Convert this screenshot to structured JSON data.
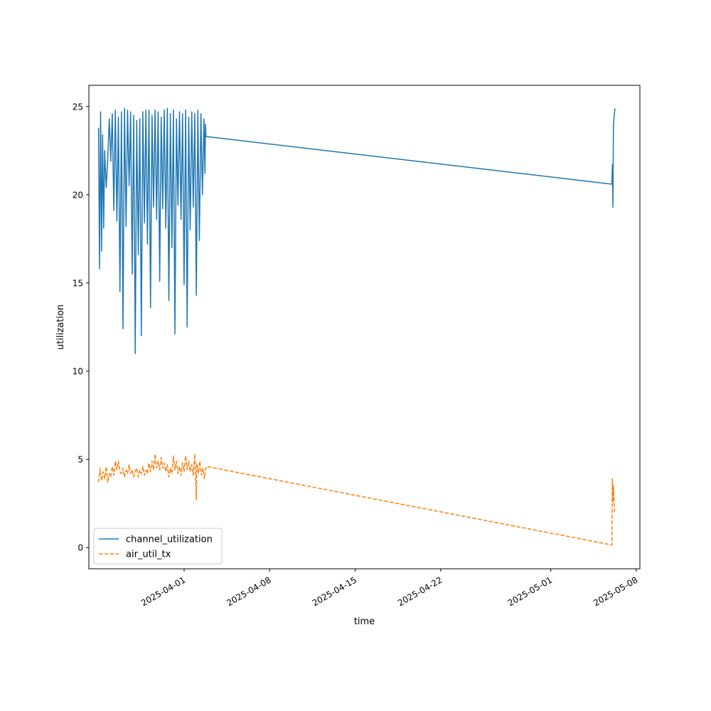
{
  "chart_data": {
    "type": "line",
    "title": "",
    "xlabel": "time",
    "ylabel": "utilization",
    "x_ticks": [
      "2025-04-01",
      "2025-04-08",
      "2025-04-15",
      "2025-04-22",
      "2025-05-01",
      "2025-05-08"
    ],
    "y_ticks": [
      "0",
      "5",
      "10",
      "15",
      "20",
      "25"
    ],
    "xlim": [
      "2025-03-24T05:00",
      "2025-05-08T07:00"
    ],
    "ylim": [
      -1.2,
      26.2
    ],
    "grid": false,
    "legend": "lower-left",
    "series": [
      {
        "name": "channel_utilization",
        "color": "#1f77b4",
        "style": "solid",
        "points": [
          [
            "2025-03-25T00:00",
            23.8
          ],
          [
            "2025-03-25T02:00",
            15.8
          ],
          [
            "2025-03-25T04:00",
            24.7
          ],
          [
            "2025-03-25T06:00",
            16.8
          ],
          [
            "2025-03-25T08:00",
            23.4
          ],
          [
            "2025-03-25T10:00",
            18.1
          ],
          [
            "2025-03-25T12:00",
            22.5
          ],
          [
            "2025-03-25T15:00",
            20.4
          ],
          [
            "2025-03-25T18:00",
            22.0
          ],
          [
            "2025-03-25T21:00",
            24.3
          ],
          [
            "2025-03-26T00:00",
            21.9
          ],
          [
            "2025-03-26T03:00",
            24.6
          ],
          [
            "2025-03-26T06:00",
            19.1
          ],
          [
            "2025-03-26T09:00",
            24.8
          ],
          [
            "2025-03-26T12:00",
            18.5
          ],
          [
            "2025-03-26T15:00",
            24.4
          ],
          [
            "2025-03-26T18:00",
            14.5
          ],
          [
            "2025-03-26T21:00",
            24.7
          ],
          [
            "2025-03-27T00:00",
            12.4
          ],
          [
            "2025-03-27T03:00",
            24.9
          ],
          [
            "2025-03-27T06:00",
            18.2
          ],
          [
            "2025-03-27T09:00",
            24.8
          ],
          [
            "2025-03-27T12:00",
            20.5
          ],
          [
            "2025-03-27T15:00",
            24.7
          ],
          [
            "2025-03-27T18:00",
            15.5
          ],
          [
            "2025-03-27T21:00",
            24.5
          ],
          [
            "2025-03-28T00:00",
            11.0
          ],
          [
            "2025-03-28T03:00",
            24.2
          ],
          [
            "2025-03-28T06:00",
            16.6
          ],
          [
            "2025-03-28T09:00",
            24.3
          ],
          [
            "2025-03-28T12:00",
            12.0
          ],
          [
            "2025-03-28T15:00",
            24.7
          ],
          [
            "2025-03-28T18:00",
            18.4
          ],
          [
            "2025-03-28T21:00",
            24.8
          ],
          [
            "2025-03-29T00:00",
            17.2
          ],
          [
            "2025-03-29T03:00",
            24.8
          ],
          [
            "2025-03-29T06:00",
            13.6
          ],
          [
            "2025-03-29T09:00",
            24.5
          ],
          [
            "2025-03-29T12:00",
            19.3
          ],
          [
            "2025-03-29T15:00",
            24.8
          ],
          [
            "2025-03-29T18:00",
            18.6
          ],
          [
            "2025-03-29T21:00",
            24.7
          ],
          [
            "2025-03-30T00:00",
            15.1
          ],
          [
            "2025-03-30T03:00",
            24.4
          ],
          [
            "2025-03-30T06:00",
            19.2
          ],
          [
            "2025-03-30T09:00",
            24.8
          ],
          [
            "2025-03-30T12:00",
            18.1
          ],
          [
            "2025-03-30T15:00",
            24.9
          ],
          [
            "2025-03-30T18:00",
            14.0
          ],
          [
            "2025-03-30T21:00",
            24.6
          ],
          [
            "2025-03-31T00:00",
            17.0
          ],
          [
            "2025-03-31T03:00",
            24.8
          ],
          [
            "2025-03-31T06:00",
            12.1
          ],
          [
            "2025-03-31T09:00",
            24.3
          ],
          [
            "2025-03-31T12:00",
            19.4
          ],
          [
            "2025-03-31T15:00",
            24.7
          ],
          [
            "2025-03-31T18:00",
            18.6
          ],
          [
            "2025-03-31T21:00",
            24.6
          ],
          [
            "2025-04-01T00:00",
            14.9
          ],
          [
            "2025-04-01T03:00",
            24.8
          ],
          [
            "2025-04-01T06:00",
            12.5
          ],
          [
            "2025-04-01T09:00",
            24.4
          ],
          [
            "2025-04-01T12:00",
            18.0
          ],
          [
            "2025-04-01T15:00",
            24.7
          ],
          [
            "2025-04-01T18:00",
            19.3
          ],
          [
            "2025-04-01T21:00",
            24.6
          ],
          [
            "2025-04-02T00:00",
            14.3
          ],
          [
            "2025-04-02T03:00",
            24.8
          ],
          [
            "2025-04-02T06:00",
            17.4
          ],
          [
            "2025-04-02T09:00",
            24.6
          ],
          [
            "2025-04-02T12:00",
            20.0
          ],
          [
            "2025-04-02T15:00",
            24.3
          ],
          [
            "2025-04-02T17:00",
            21.2
          ],
          [
            "2025-04-02T18:00",
            24.0
          ],
          [
            "2025-04-02T19:00",
            23.3
          ],
          [
            "2025-05-06T00:00",
            20.6
          ],
          [
            "2025-05-06T01:00",
            21.7
          ],
          [
            "2025-05-06T02:00",
            19.3
          ],
          [
            "2025-05-06T03:00",
            24.0
          ],
          [
            "2025-05-06T06:00",
            24.9
          ]
        ]
      },
      {
        "name": "air_util_tx",
        "color": "#ff7f0e",
        "style": "dashed",
        "points": [
          [
            "2025-03-25T00:00",
            3.7
          ],
          [
            "2025-03-25T03:00",
            4.5
          ],
          [
            "2025-03-25T06:00",
            3.8
          ],
          [
            "2025-03-25T09:00",
            4.3
          ],
          [
            "2025-03-25T12:00",
            3.9
          ],
          [
            "2025-03-25T15:00",
            4.6
          ],
          [
            "2025-03-25T18:00",
            3.7
          ],
          [
            "2025-03-25T21:00",
            4.2
          ],
          [
            "2025-03-26T00:00",
            4.0
          ],
          [
            "2025-03-26T03:00",
            4.6
          ],
          [
            "2025-03-26T06:00",
            4.1
          ],
          [
            "2025-03-26T09:00",
            4.9
          ],
          [
            "2025-03-26T12:00",
            4.4
          ],
          [
            "2025-03-26T15:00",
            4.9
          ],
          [
            "2025-03-26T18:00",
            4.3
          ],
          [
            "2025-03-26T21:00",
            4.2
          ],
          [
            "2025-03-27T00:00",
            4.5
          ],
          [
            "2025-03-27T03:00",
            4.0
          ],
          [
            "2025-03-27T06:00",
            4.4
          ],
          [
            "2025-03-27T09:00",
            4.2
          ],
          [
            "2025-03-27T12:00",
            4.7
          ],
          [
            "2025-03-27T15:00",
            4.2
          ],
          [
            "2025-03-27T18:00",
            4.4
          ],
          [
            "2025-03-27T21:00",
            4.0
          ],
          [
            "2025-03-28T00:00",
            4.3
          ],
          [
            "2025-03-28T03:00",
            4.5
          ],
          [
            "2025-03-28T06:00",
            4.0
          ],
          [
            "2025-03-28T09:00",
            4.4
          ],
          [
            "2025-03-28T12:00",
            4.2
          ],
          [
            "2025-03-28T15:00",
            4.6
          ],
          [
            "2025-03-28T18:00",
            4.1
          ],
          [
            "2025-03-28T21:00",
            4.4
          ],
          [
            "2025-03-29T00:00",
            4.2
          ],
          [
            "2025-03-29T03:00",
            4.8
          ],
          [
            "2025-03-29T06:00",
            4.3
          ],
          [
            "2025-03-29T09:00",
            4.9
          ],
          [
            "2025-03-29T12:00",
            4.4
          ],
          [
            "2025-03-29T15:00",
            5.3
          ],
          [
            "2025-03-29T18:00",
            4.5
          ],
          [
            "2025-03-29T21:00",
            4.9
          ],
          [
            "2025-03-30T00:00",
            4.4
          ],
          [
            "2025-03-30T03:00",
            5.1
          ],
          [
            "2025-03-30T06:00",
            4.5
          ],
          [
            "2025-03-30T09:00",
            4.8
          ],
          [
            "2025-03-30T12:00",
            4.3
          ],
          [
            "2025-03-30T15:00",
            4.7
          ],
          [
            "2025-03-30T18:00",
            4.0
          ],
          [
            "2025-03-30T21:00",
            4.5
          ],
          [
            "2025-03-31T00:00",
            4.2
          ],
          [
            "2025-03-31T03:00",
            5.2
          ],
          [
            "2025-03-31T06:00",
            4.4
          ],
          [
            "2025-03-31T09:00",
            4.9
          ],
          [
            "2025-03-31T12:00",
            4.2
          ],
          [
            "2025-03-31T15:00",
            4.6
          ],
          [
            "2025-03-31T18:00",
            4.1
          ],
          [
            "2025-03-31T21:00",
            4.8
          ],
          [
            "2025-04-01T00:00",
            4.3
          ],
          [
            "2025-04-01T03:00",
            5.2
          ],
          [
            "2025-04-01T06:00",
            4.4
          ],
          [
            "2025-04-01T09:00",
            4.9
          ],
          [
            "2025-04-01T12:00",
            4.3
          ],
          [
            "2025-04-01T15:00",
            4.7
          ],
          [
            "2025-04-01T18:00",
            4.1
          ],
          [
            "2025-04-01T21:00",
            5.3
          ],
          [
            "2025-04-02T00:00",
            2.7
          ],
          [
            "2025-04-02T01:00",
            4.8
          ],
          [
            "2025-04-02T04:00",
            4.2
          ],
          [
            "2025-04-02T07:00",
            4.9
          ],
          [
            "2025-04-02T10:00",
            4.1
          ],
          [
            "2025-04-02T13:00",
            4.5
          ],
          [
            "2025-04-02T16:00",
            3.9
          ],
          [
            "2025-04-02T18:00",
            4.4
          ],
          [
            "2025-04-02T20:00",
            4.6
          ],
          [
            "2025-05-06T00:00",
            0.15
          ],
          [
            "2025-05-06T01:00",
            3.9
          ],
          [
            "2025-05-06T02:00",
            2.6
          ],
          [
            "2025-05-06T03:00",
            3.5
          ],
          [
            "2025-05-06T05:00",
            2.0
          ]
        ]
      }
    ]
  }
}
